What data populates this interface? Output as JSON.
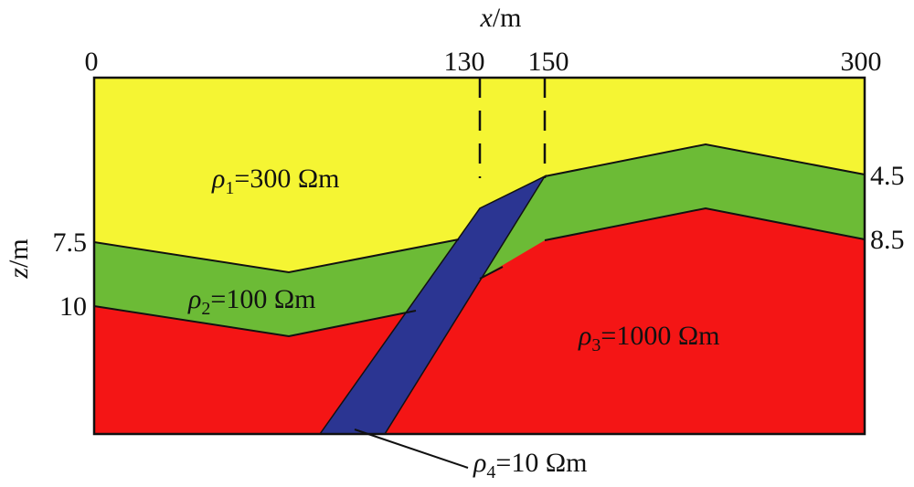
{
  "x_axis": {
    "title_var": "x",
    "title_unit": "/m",
    "ticks": [
      "0",
      "130",
      "150",
      "300"
    ]
  },
  "z_axis": {
    "title_var": "z",
    "title_unit": "/m",
    "left_ticks": [
      "7.5",
      "10"
    ],
    "right_ticks": [
      "4.5",
      "8.5"
    ]
  },
  "layers": [
    {
      "id": "layer-1",
      "symbol": "ρ",
      "index": "1",
      "value": "=300 Ωm",
      "color": "#f5f533"
    },
    {
      "id": "layer-2",
      "symbol": "ρ",
      "index": "2",
      "value": "=100 Ωm",
      "color": "#6cbb36"
    },
    {
      "id": "layer-3",
      "symbol": "ρ",
      "index": "3",
      "value": "=1000 Ωm",
      "color": "#f41515"
    },
    {
      "id": "layer-4",
      "symbol": "ρ",
      "index": "4",
      "value": "=10 Ωm",
      "color": "#2b3592"
    }
  ]
}
